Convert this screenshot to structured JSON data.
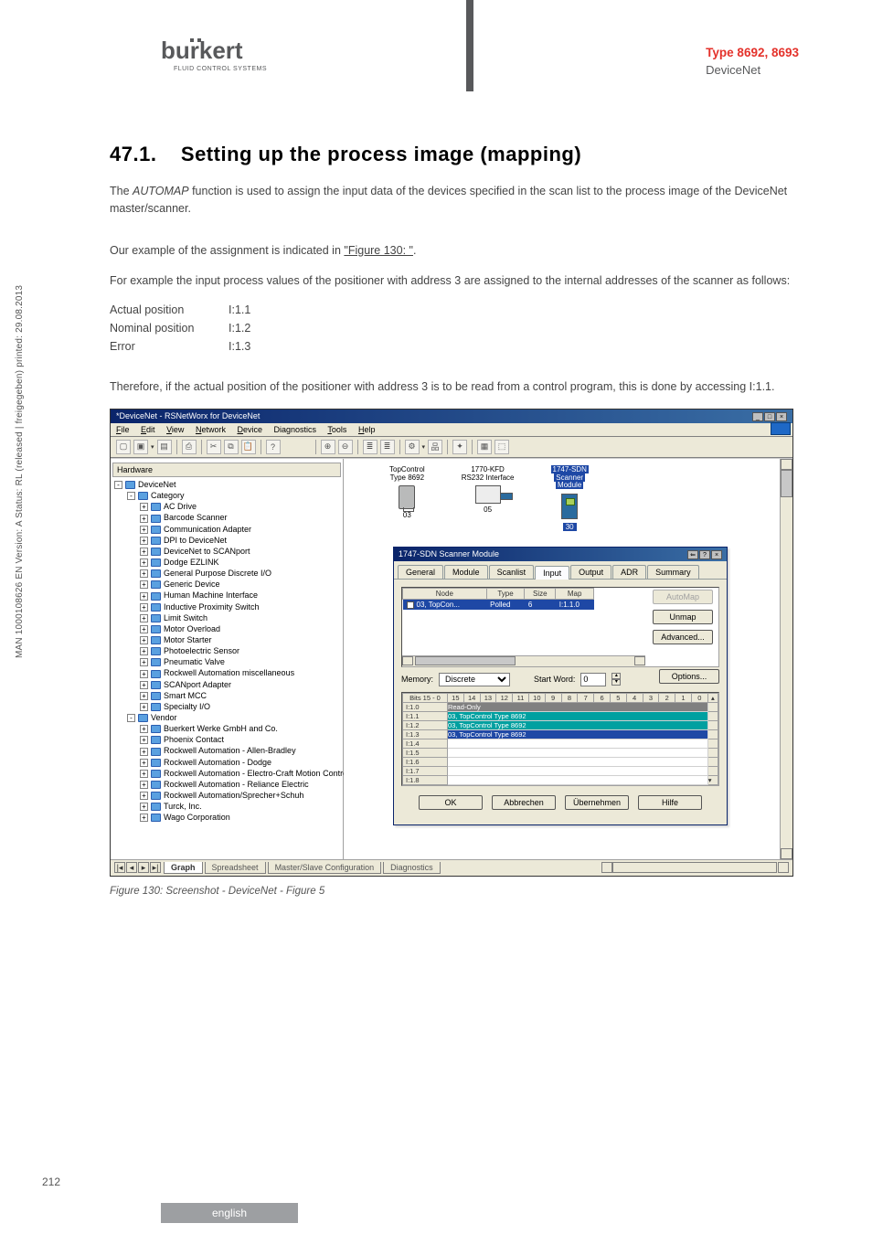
{
  "header": {
    "type_line": "Type 8692, 8693",
    "subtitle": "DeviceNet",
    "logo_text": "burkert",
    "logo_sub": "FLUID CONTROL SYSTEMS"
  },
  "section": {
    "number": "47.1.",
    "title": "Setting up the process image (mapping)"
  },
  "paragraphs": {
    "p1a": "The ",
    "p1_em": "AUTOMAP",
    "p1b": " function is used to assign the input data of the devices specified in the scan list to the process image of the DeviceNet master/scanner.",
    "p2a": "Our example of the assignment is indicated in ",
    "p2_link": "\"Figure 130: \"",
    "p2b": ".",
    "p3": "For example the input process values of the positioner with address 3 are assigned to the internal addresses of the scanner as follows:",
    "p4": "Therefore, if the actual position of the positioner with address 3 is to be read from a control program, this is done by accessing I:1.1."
  },
  "pos_table": {
    "rows": [
      {
        "label": "Actual position",
        "value": "I:1.1"
      },
      {
        "label": "Nominal position",
        "value": "I:1.2"
      },
      {
        "label": "Error",
        "value": "I:1.3"
      }
    ]
  },
  "screenshot": {
    "window_title": "*DeviceNet - RSNetWorx for DeviceNet",
    "menus": [
      "File",
      "Edit",
      "View",
      "Network",
      "Device",
      "Diagnostics",
      "Tools",
      "Help"
    ],
    "tree_header": "Hardware",
    "tree": [
      {
        "lvl": 0,
        "box": "-",
        "label": "DeviceNet"
      },
      {
        "lvl": 1,
        "box": "-",
        "label": "Category"
      },
      {
        "lvl": 2,
        "box": "+",
        "label": "AC Drive"
      },
      {
        "lvl": 2,
        "box": "+",
        "label": "Barcode Scanner"
      },
      {
        "lvl": 2,
        "box": "+",
        "label": "Communication Adapter"
      },
      {
        "lvl": 2,
        "box": "+",
        "label": "DPI to DeviceNet"
      },
      {
        "lvl": 2,
        "box": "+",
        "label": "DeviceNet to SCANport"
      },
      {
        "lvl": 2,
        "box": "+",
        "label": "Dodge EZLINK"
      },
      {
        "lvl": 2,
        "box": "+",
        "label": "General Purpose Discrete I/O"
      },
      {
        "lvl": 2,
        "box": "+",
        "label": "Generic Device"
      },
      {
        "lvl": 2,
        "box": "+",
        "label": "Human Machine Interface"
      },
      {
        "lvl": 2,
        "box": "+",
        "label": "Inductive Proximity Switch"
      },
      {
        "lvl": 2,
        "box": "+",
        "label": "Limit Switch"
      },
      {
        "lvl": 2,
        "box": "+",
        "label": "Motor Overload"
      },
      {
        "lvl": 2,
        "box": "+",
        "label": "Motor Starter"
      },
      {
        "lvl": 2,
        "box": "+",
        "label": "Photoelectric Sensor"
      },
      {
        "lvl": 2,
        "box": "+",
        "label": "Pneumatic Valve"
      },
      {
        "lvl": 2,
        "box": "+",
        "label": "Rockwell Automation miscellaneous"
      },
      {
        "lvl": 2,
        "box": "+",
        "label": "SCANport Adapter"
      },
      {
        "lvl": 2,
        "box": "+",
        "label": "Smart MCC"
      },
      {
        "lvl": 2,
        "box": "+",
        "label": "Specialty I/O"
      },
      {
        "lvl": 1,
        "box": "-",
        "label": "Vendor"
      },
      {
        "lvl": 2,
        "box": "+",
        "label": "Buerkert Werke GmbH and Co."
      },
      {
        "lvl": 2,
        "box": "+",
        "label": "Phoenix Contact"
      },
      {
        "lvl": 2,
        "box": "+",
        "label": "Rockwell Automation - Allen-Bradley"
      },
      {
        "lvl": 2,
        "box": "+",
        "label": "Rockwell Automation - Dodge"
      },
      {
        "lvl": 2,
        "box": "+",
        "label": "Rockwell Automation - Electro-Craft Motion Control"
      },
      {
        "lvl": 2,
        "box": "+",
        "label": "Rockwell Automation - Reliance Electric"
      },
      {
        "lvl": 2,
        "box": "+",
        "label": "Rockwell Automation/Sprecher+Schuh"
      },
      {
        "lvl": 2,
        "box": "+",
        "label": "Turck, Inc."
      },
      {
        "lvl": 2,
        "box": "+",
        "label": "Wago Corporation"
      }
    ],
    "devices": [
      {
        "name_a": "TopControl",
        "name_b": "Type 8692",
        "num": "03"
      },
      {
        "name_a": "1770-KFD",
        "name_b": "RS232 Interface",
        "num": "05"
      },
      {
        "name_a": "1747-SDN",
        "name_b": "Scanner",
        "name_c": "Module",
        "num": "30",
        "highlight": true
      }
    ],
    "dialog": {
      "title": "1747-SDN Scanner Module",
      "tabs": [
        "General",
        "Module",
        "Scanlist",
        "Input",
        "Output",
        "ADR",
        "Summary"
      ],
      "active_tab": 3,
      "list_headers": [
        "Node",
        "Type",
        "Size",
        "Map"
      ],
      "list_row": {
        "node": "03, TopCon...",
        "type": "Polled",
        "size": "6",
        "map": "I:1.1.0"
      },
      "side_buttons": [
        "AutoMap",
        "Unmap",
        "Advanced...",
        "Options..."
      ],
      "memory_label": "Memory:",
      "memory_value": "Discrete",
      "startword_label": "Start Word:",
      "startword_value": "0",
      "bits_header_label": "Bits 15 - 0",
      "bits": [
        "15",
        "14",
        "13",
        "12",
        "11",
        "10",
        "9",
        "8",
        "7",
        "6",
        "5",
        "4",
        "3",
        "2",
        "1",
        "0"
      ],
      "addr_rows": [
        "I:1.0",
        "I:1.1",
        "I:1.2",
        "I:1.3",
        "I:1.4",
        "I:1.5",
        "I:1.6",
        "I:1.7",
        "I:1.8"
      ],
      "readonly_label": "Read-Only",
      "bar_std": "03, TopControl Type 8692",
      "bar_sel": "03, TopControl Type 8692",
      "footer_buttons": [
        "OK",
        "Abbrechen",
        "Übernehmen",
        "Hilfe"
      ]
    },
    "tabstrip": [
      "Graph",
      "Spreadsheet",
      "Master/Slave Configuration",
      "Diagnostics"
    ]
  },
  "figure_caption": "Figure 130:    Screenshot - DeviceNet - Figure 5",
  "side_text": "MAN 1000108626 EN Version: A Status: RL (released | freigegeben) printed: 29.08.2013",
  "page_number": "212",
  "footer_lang": "english",
  "colors": {
    "accent": "#e4322b",
    "win_title_a": "#0a246a",
    "win_title_b": "#3a6ea5",
    "selection": "#1e48a5",
    "teal": "#00a0a0",
    "grey_pill": "#9d9fa2"
  }
}
